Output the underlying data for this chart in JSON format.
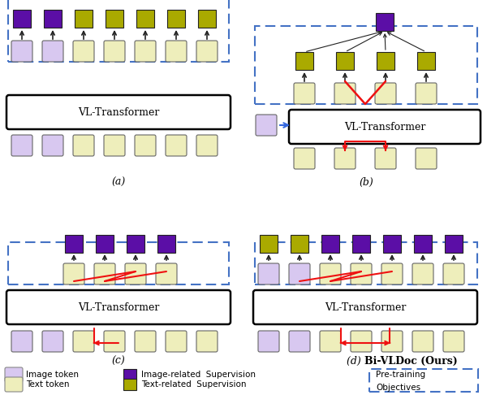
{
  "image_token_color": "#D8C8F0",
  "text_token_color": "#EEEEBB",
  "image_sup_color": "#5B0EA6",
  "text_sup_color": "#AAAA00",
  "dashed_color": "#4472C4",
  "red_color": "#EE1111",
  "dark_color": "#222222",
  "blue_color": "#3366DD",
  "bg_color": "#FFFFFF",
  "caption_a": "(a)",
  "caption_b": "(b)",
  "caption_c": "(c)",
  "caption_d_normal": "(d) ",
  "caption_d_bold": "Bi-VLDoc (Ours)",
  "vl_label": "VL-Transformer",
  "legend_image_token": "Image token",
  "legend_text_token": "Text token",
  "legend_image_sup": "Image-related  Supervision",
  "legend_text_sup": "Text-related  Supervision",
  "legend_pretrain1": "Pre-training",
  "legend_pretrain2": "Objectives"
}
